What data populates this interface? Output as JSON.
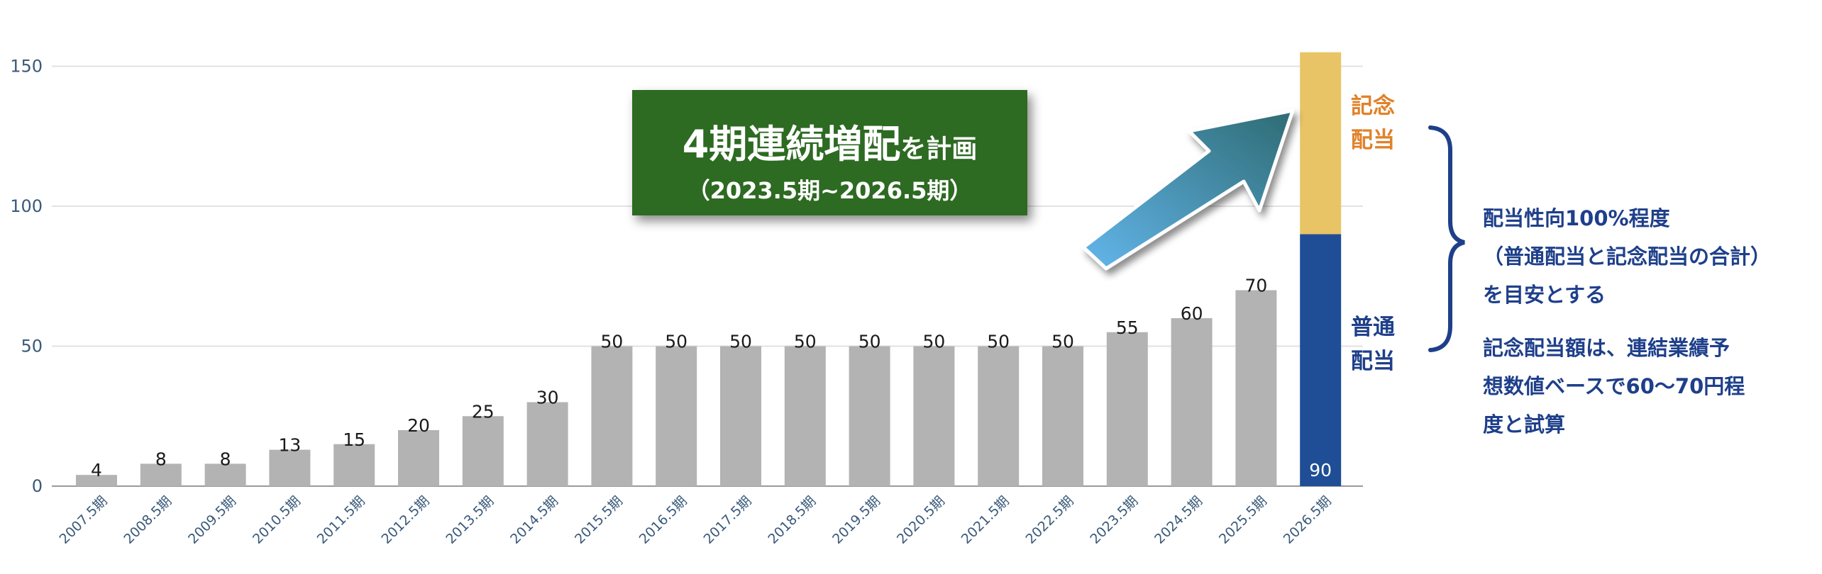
{
  "banner": {
    "title_big": "4期連続増配",
    "title_small": "を計画",
    "subtitle": "（2023.5期~2026.5期）"
  },
  "labels": {
    "commemorative": [
      "記念",
      "配当"
    ],
    "ordinary": [
      "普通",
      "配当"
    ]
  },
  "notes": {
    "payout": [
      "配当性向100%程度",
      "（普通配当と記念配当の合計）",
      "を目安とする"
    ],
    "commemorative": [
      "記念配当額は、連結業績予",
      "想数値ベースで60～70円程",
      "度と試算"
    ]
  },
  "colors": {
    "bar": "#b3b3b3",
    "ordinary": "#1f4e96",
    "commemorative": "#e8c466",
    "banner": "#2d6a22",
    "label_orange": "#e0822a",
    "label_blue": "#1e3f8a",
    "axis_text": "#3a5a7a",
    "grid": "#e2e2e2"
  },
  "chart_data": {
    "type": "bar",
    "categories": [
      "2007.5期",
      "2008.5期",
      "2009.5期",
      "2010.5期",
      "2011.5期",
      "2012.5期",
      "2013.5期",
      "2014.5期",
      "2015.5期",
      "2016.5期",
      "2017.5期",
      "2018.5期",
      "2019.5期",
      "2020.5期",
      "2021.5期",
      "2022.5期",
      "2023.5期",
      "2024.5期",
      "2025.5期",
      "2026.5期"
    ],
    "values": [
      4,
      8,
      8,
      13,
      15,
      20,
      25,
      30,
      50,
      50,
      50,
      50,
      50,
      50,
      50,
      50,
      55,
      60,
      70,
      90
    ],
    "stacked_last": {
      "ordinary": 90,
      "commemorative_top": 155
    },
    "ylim": [
      0,
      160
    ],
    "yticks": [
      0,
      50,
      100,
      150
    ],
    "grid": true,
    "xlabel": "",
    "ylabel": "",
    "title": ""
  }
}
